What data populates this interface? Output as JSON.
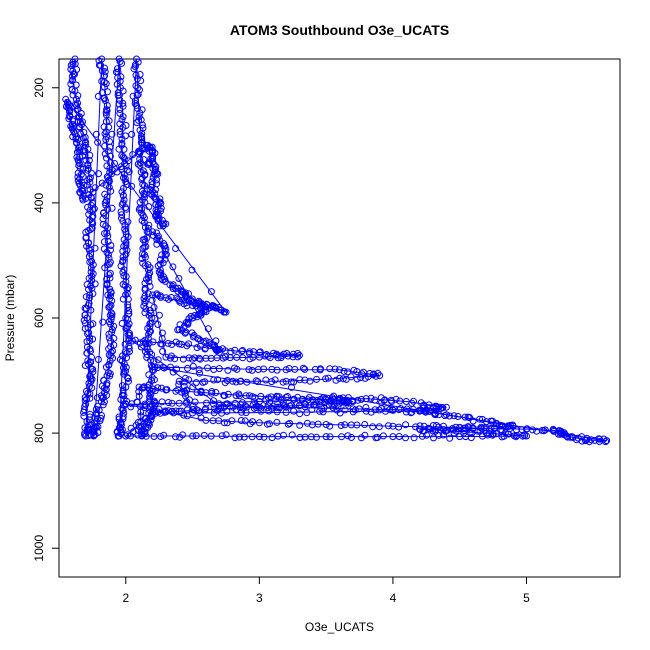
{
  "chart_data": {
    "type": "scatter",
    "title": "ATOM3 Southbound O3e_UCATS",
    "xlabel": "O3e_UCATS",
    "ylabel": "Pressure (mbar)",
    "xlim": [
      1.5,
      5.7
    ],
    "ylim": [
      150,
      1050
    ],
    "y_reversed": true,
    "x_ticks": [
      2,
      3,
      4,
      5
    ],
    "y_ticks": [
      200,
      400,
      600,
      800,
      1000
    ],
    "grid": false,
    "legend": "none",
    "marker": "open-circle",
    "connected": true,
    "color": "#0000ff",
    "series": [
      {
        "points": [
          [
            1.62,
            150
          ],
          [
            1.6,
            180
          ],
          [
            1.63,
            220
          ],
          [
            1.66,
            260
          ],
          [
            1.7,
            300
          ],
          [
            1.72,
            340
          ],
          [
            1.74,
            390
          ],
          [
            1.73,
            430
          ],
          [
            1.72,
            470
          ],
          [
            1.74,
            520
          ],
          [
            1.73,
            560
          ],
          [
            1.71,
            600
          ],
          [
            1.73,
            640
          ],
          [
            1.72,
            680
          ],
          [
            1.74,
            710
          ],
          [
            1.7,
            750
          ],
          [
            1.72,
            790
          ],
          [
            1.7,
            805
          ],
          [
            1.82,
            150
          ],
          [
            1.84,
            190
          ],
          [
            1.86,
            240
          ],
          [
            1.85,
            290
          ],
          [
            1.88,
            340
          ],
          [
            1.86,
            390
          ],
          [
            1.85,
            440
          ],
          [
            1.87,
            490
          ],
          [
            1.86,
            540
          ],
          [
            1.88,
            580
          ],
          [
            1.9,
            620
          ],
          [
            1.89,
            660
          ],
          [
            1.86,
            700
          ],
          [
            1.84,
            730
          ],
          [
            1.8,
            760
          ],
          [
            1.78,
            790
          ],
          [
            1.76,
            805
          ],
          [
            1.95,
            150
          ],
          [
            1.96,
            200
          ],
          [
            1.98,
            250
          ],
          [
            1.97,
            300
          ],
          [
            1.99,
            350
          ],
          [
            1.98,
            400
          ],
          [
            2.0,
            450
          ],
          [
            1.98,
            500
          ],
          [
            2.01,
            550
          ],
          [
            2.0,
            600
          ],
          [
            2.02,
            640
          ],
          [
            1.99,
            680
          ],
          [
            2.0,
            720
          ],
          [
            1.98,
            760
          ],
          [
            1.96,
            790
          ],
          [
            1.95,
            805
          ],
          [
            2.08,
            150
          ],
          [
            2.09,
            200
          ],
          [
            2.1,
            250
          ],
          [
            2.12,
            290
          ],
          [
            2.11,
            330
          ],
          [
            2.14,
            370
          ],
          [
            2.12,
            410
          ],
          [
            2.16,
            450
          ],
          [
            2.14,
            490
          ],
          [
            2.17,
            530
          ],
          [
            2.15,
            570
          ],
          [
            2.18,
            610
          ],
          [
            2.16,
            650
          ],
          [
            2.2,
            690
          ],
          [
            2.18,
            730
          ],
          [
            2.2,
            760
          ],
          [
            2.15,
            790
          ],
          [
            2.12,
            805
          ],
          [
            2.1,
            720
          ],
          [
            2.3,
            725
          ],
          [
            2.6,
            730
          ],
          [
            2.9,
            735
          ],
          [
            3.2,
            738
          ],
          [
            3.5,
            742
          ],
          [
            3.7,
            745
          ],
          [
            3.6,
            748
          ],
          [
            3.3,
            752
          ],
          [
            3.0,
            755
          ],
          [
            2.7,
            758
          ],
          [
            2.4,
            762
          ],
          [
            2.2,
            765
          ],
          [
            2.0,
            805
          ],
          [
            2.5,
            805
          ],
          [
            3.0,
            806
          ],
          [
            3.5,
            806
          ],
          [
            4.0,
            806
          ],
          [
            4.5,
            806
          ],
          [
            5.0,
            805
          ],
          [
            4.7,
            800
          ],
          [
            4.4,
            796
          ],
          [
            4.2,
            793
          ],
          [
            4.6,
            792
          ],
          [
            5.0,
            793
          ],
          [
            5.25,
            796
          ],
          [
            5.3,
            805
          ],
          [
            5.45,
            812
          ],
          [
            5.6,
            813
          ],
          [
            2.2,
            685
          ],
          [
            2.7,
            688
          ],
          [
            3.2,
            690
          ],
          [
            3.6,
            690
          ],
          [
            3.9,
            700
          ],
          [
            3.6,
            705
          ],
          [
            3.2,
            710
          ],
          [
            2.8,
            710
          ],
          [
            2.4,
            710
          ],
          [
            2.5,
            765
          ],
          [
            3.2,
            764
          ],
          [
            3.8,
            762
          ],
          [
            4.2,
            762
          ],
          [
            4.4,
            768
          ],
          [
            4.7,
            780
          ],
          [
            4.9,
            788
          ],
          [
            4.5,
            790
          ],
          [
            4.0,
            788
          ],
          [
            3.5,
            785
          ],
          [
            3.0,
            782
          ],
          [
            2.6,
            778
          ],
          [
            2.0,
            750
          ],
          [
            2.4,
            748
          ],
          [
            3.0,
            745
          ],
          [
            3.4,
            742
          ],
          [
            3.8,
            740
          ],
          [
            4.1,
            745
          ],
          [
            4.4,
            755
          ],
          [
            4.2,
            760
          ],
          [
            3.7,
            758
          ],
          [
            3.2,
            755
          ],
          [
            2.7,
            752
          ],
          [
            2.05,
            640
          ],
          [
            2.4,
            645
          ],
          [
            2.7,
            655
          ],
          [
            3.0,
            660
          ],
          [
            3.3,
            665
          ],
          [
            3.0,
            668
          ],
          [
            2.6,
            670
          ],
          [
            2.3,
            668
          ],
          [
            2.2,
            560
          ],
          [
            2.4,
            570
          ],
          [
            2.6,
            585
          ],
          [
            2.5,
            600
          ],
          [
            2.4,
            620
          ],
          [
            2.6,
            640
          ],
          [
            2.7,
            660
          ],
          [
            2.2,
            450
          ],
          [
            2.3,
            480
          ],
          [
            2.25,
            520
          ],
          [
            2.35,
            545
          ],
          [
            2.45,
            560
          ],
          [
            2.55,
            575
          ],
          [
            2.65,
            580
          ],
          [
            2.75,
            590
          ],
          [
            1.55,
            220
          ],
          [
            1.58,
            250
          ],
          [
            1.62,
            280
          ],
          [
            1.65,
            310
          ],
          [
            1.66,
            340
          ],
          [
            1.66,
            370
          ],
          [
            1.68,
            395
          ],
          [
            2.15,
            300
          ],
          [
            2.2,
            310
          ],
          [
            2.18,
            330
          ],
          [
            2.22,
            350
          ],
          [
            2.2,
            380
          ],
          [
            2.25,
            400
          ],
          [
            2.23,
            420
          ],
          [
            2.28,
            440
          ]
        ]
      }
    ]
  }
}
